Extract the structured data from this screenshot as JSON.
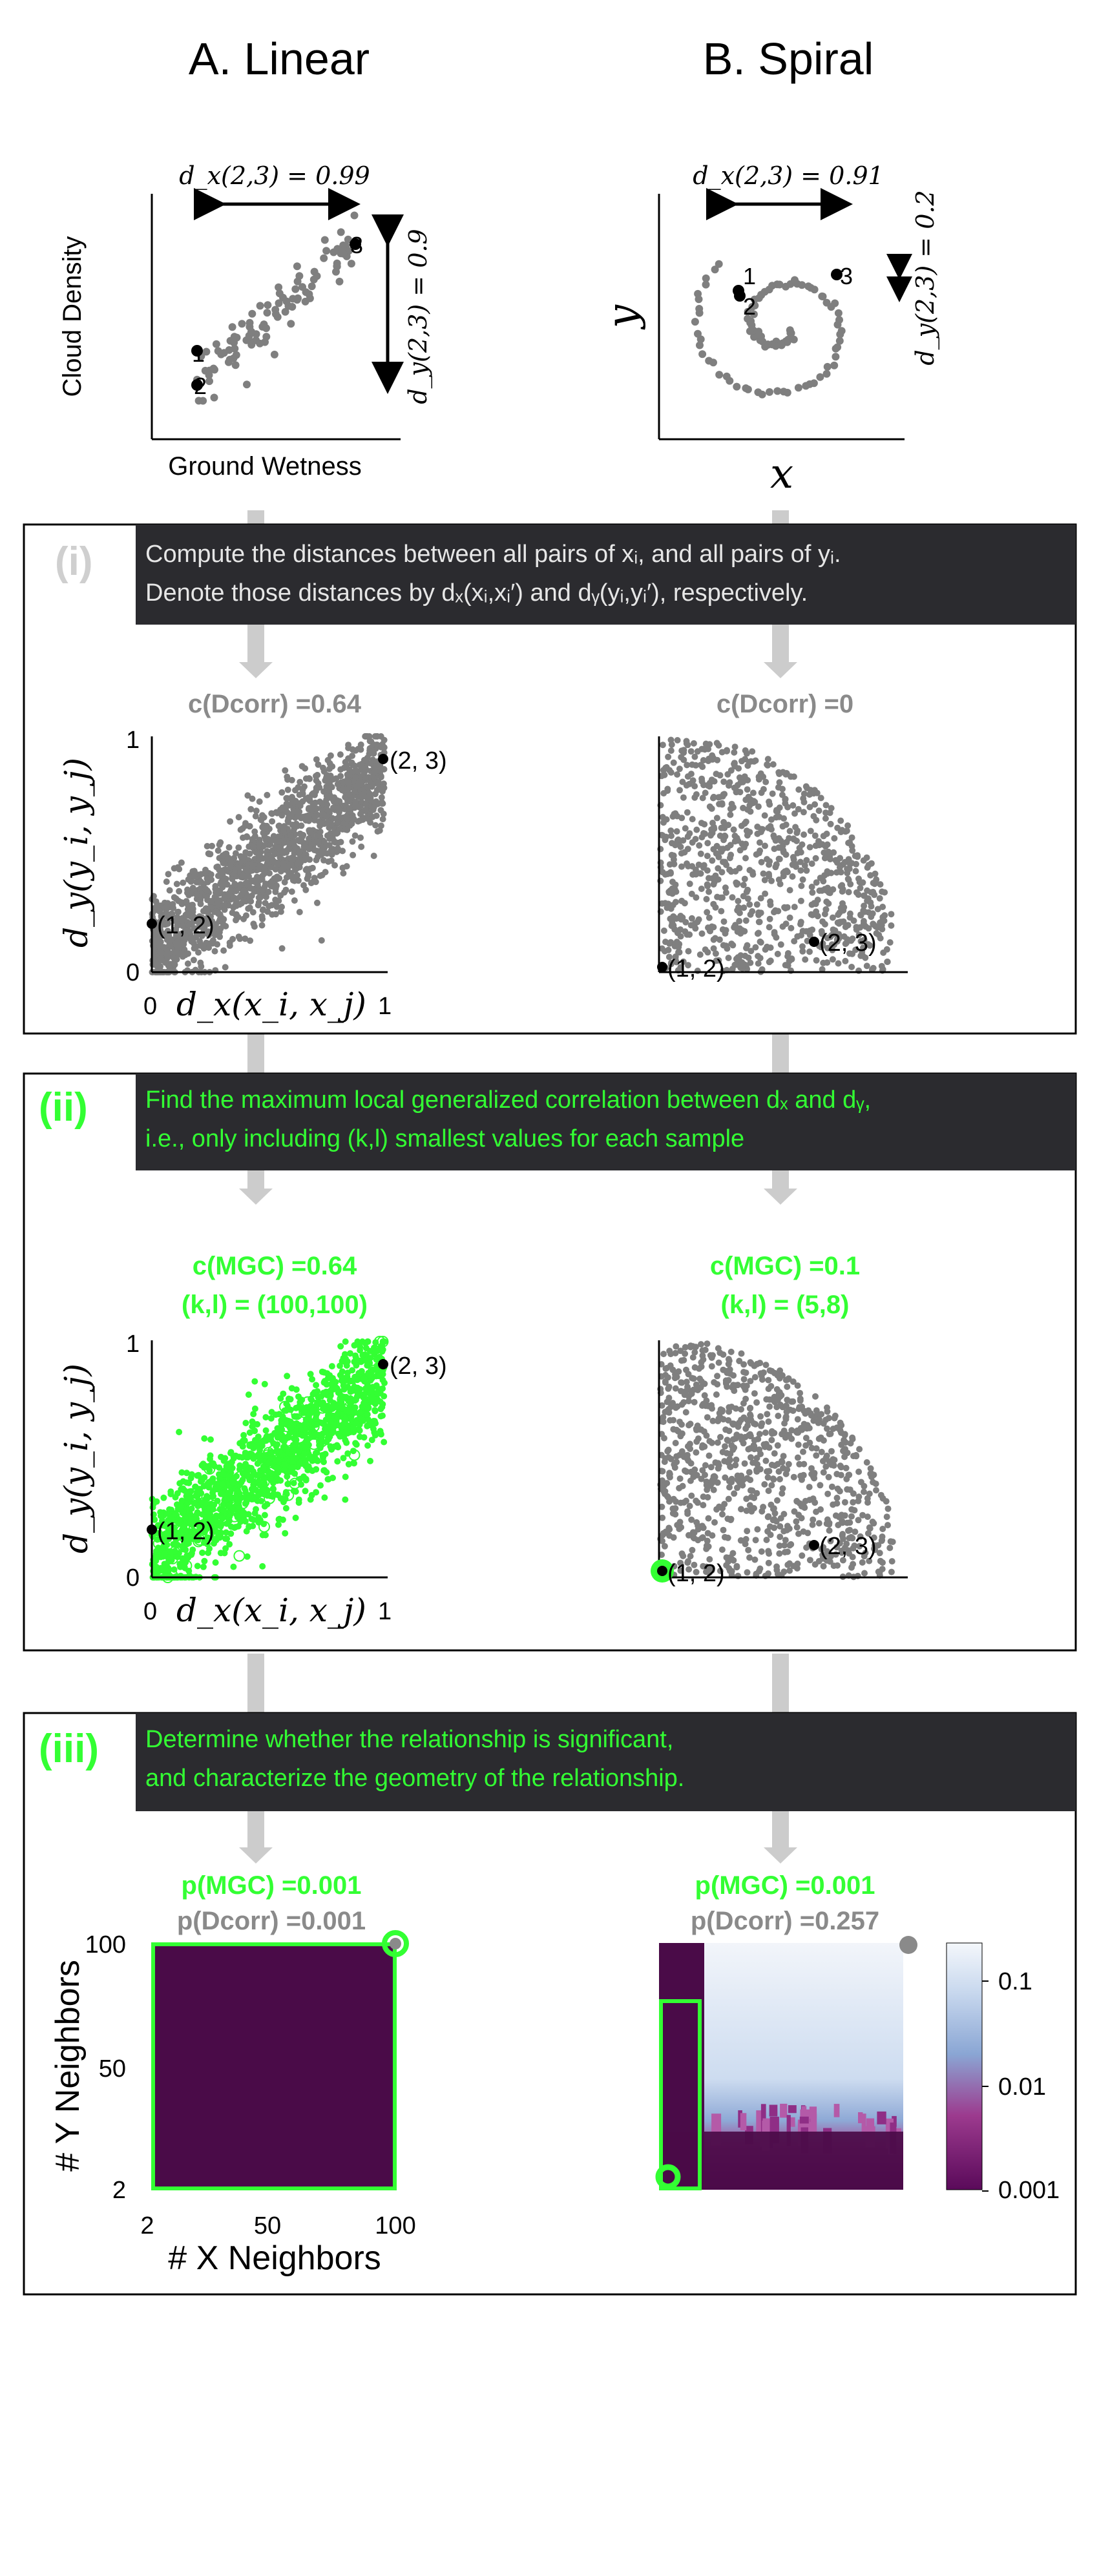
{
  "columns": {
    "a_title": "A. Linear",
    "b_title": "B. Spiral"
  },
  "top": {
    "linear": {
      "xlabel": "Ground Wetness",
      "ylabel": "Cloud Density",
      "dx_label": "d_x(2,3) = 0.99",
      "dy_label": "d_y(2,3) = 0.9",
      "pt1": "1",
      "pt2": "2",
      "pt3": "3"
    },
    "spiral": {
      "xlabel": "x",
      "ylabel": "y",
      "dx_label": "d_x(2,3) = 0.91",
      "dy_label": "d_y(2,3) = 0.2",
      "pt1": "1",
      "pt2": "2",
      "pt3": "3"
    }
  },
  "step1": {
    "roman": "(i)",
    "line1": "Compute the distances between all pairs of xᵢ, and all pairs of yᵢ.",
    "line2": "Denote those distances by dₓ(xᵢ,xᵢ′) and dᵧ(yᵢ,yᵢ′), respectively.",
    "linear_title": "c(Dcorr) =0.64",
    "spiral_title": "c(Dcorr) =0",
    "xlabel": "d_x(x_i, x_j)",
    "ylabel": "d_y(y_i, y_j)",
    "tick_0": "0",
    "tick_1": "1",
    "label_12": "(1, 2)",
    "label_23": "(2, 3)"
  },
  "step2": {
    "roman": "(ii)",
    "line1": "Find the maximum local generalized correlation between dₓ and dᵧ,",
    "line2": "i.e., only including (k,l) smallest values for each sample",
    "linear_title": "c(MGC) =0.64",
    "linear_kl": "(k,l) = (100,100)",
    "spiral_title": "c(MGC) =0.1",
    "spiral_kl": "(k,l) = (5,8)",
    "xlabel": "d_x(x_i, x_j)",
    "ylabel": "d_y(y_i, y_j)",
    "tick_0": "0",
    "tick_1": "1",
    "label_12": "(1, 2)",
    "label_23": "(2, 3)"
  },
  "step3": {
    "roman": "(iii)",
    "line1": "Determine whether the relationship is significant,",
    "line2": "and characterize the geometry of the relationship.",
    "linear_pmgc": "p(MGC) =0.001",
    "linear_pdcorr": "p(Dcorr) =0.001",
    "spiral_pmgc": "p(MGC) =0.001",
    "spiral_pdcorr": "p(Dcorr) =0.257",
    "ylabel": "# Y Neighbors",
    "xlabel": "# X Neighbors",
    "yticks": [
      "100",
      "50",
      "2"
    ],
    "xticks": [
      "2",
      "50",
      "100"
    ],
    "colorbar_ticks": [
      "0.1",
      "0.01",
      "0.001"
    ]
  },
  "colors": {
    "gray_points": "#7f7f7f",
    "mgc_green": "#33ff33",
    "banner_bg": "#2b2b2f",
    "heat_dark": "#4a0b48",
    "heat_light": "#e8eef7"
  }
}
